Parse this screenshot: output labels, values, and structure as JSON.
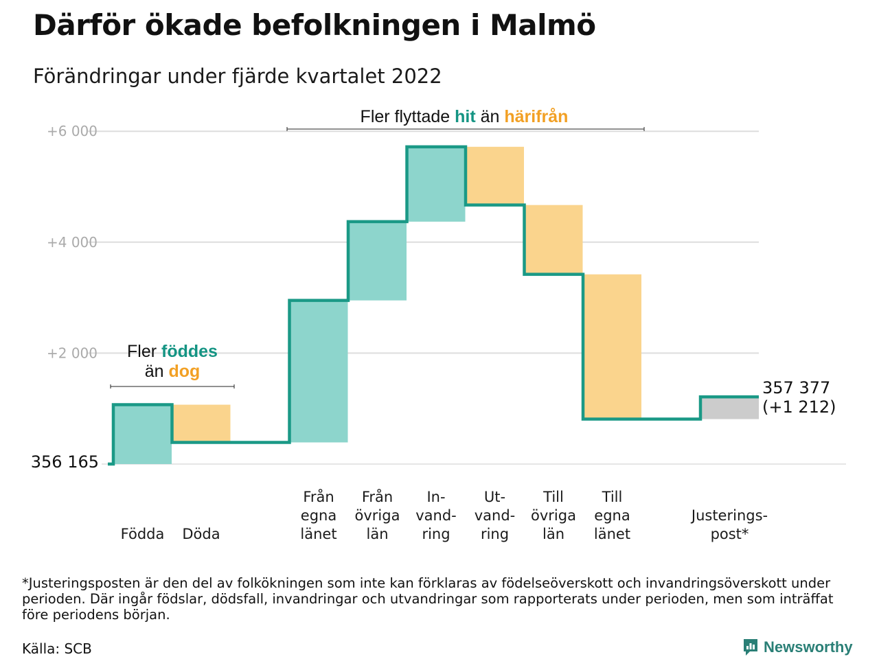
{
  "title": "Därför ökade befolkningen i Malmö",
  "subtitle": "Förändringar under fjärde kvartalet 2022",
  "colors": {
    "increase": "#8dd5cc",
    "decrease": "#fad48d",
    "adjustment": "#cccccc",
    "line": "#1a9986",
    "accent_teal": "#149483",
    "accent_orange": "#f2a024",
    "grid": "#dddddd"
  },
  "chart_data": {
    "type": "waterfall",
    "baseline_label": "356 165",
    "end_label_line1": "357 377",
    "end_label_line2": "(+1 212)",
    "ylim": [
      0,
      6000
    ],
    "yticks": [
      {
        "value": 2000,
        "label": "+2 000"
      },
      {
        "value": 4000,
        "label": "+4 000"
      },
      {
        "value": 6000,
        "label": "+6 000"
      }
    ],
    "bars": [
      {
        "label": [
          "Födda"
        ],
        "from": 0,
        "to": 1070,
        "kind": "increase"
      },
      {
        "label": [
          "Döda"
        ],
        "from": 1070,
        "to": 390,
        "kind": "decrease"
      },
      {
        "label": [
          "Från",
          "egna",
          "länet"
        ],
        "from": 390,
        "to": 2950,
        "kind": "increase"
      },
      {
        "label": [
          "Från",
          "övriga",
          "län"
        ],
        "from": 2950,
        "to": 4370,
        "kind": "increase"
      },
      {
        "label": [
          "In-",
          "vand-",
          "ring"
        ],
        "from": 4370,
        "to": 5720,
        "kind": "increase"
      },
      {
        "label": [
          "Ut-",
          "vand-",
          "ring"
        ],
        "from": 5720,
        "to": 4670,
        "kind": "decrease"
      },
      {
        "label": [
          "Till",
          "övriga",
          "län"
        ],
        "from": 4670,
        "to": 3420,
        "kind": "decrease"
      },
      {
        "label": [
          "Till",
          "egna",
          "länet"
        ],
        "from": 3420,
        "to": 810,
        "kind": "decrease"
      },
      {
        "label": [
          "Justerings-",
          "post*"
        ],
        "from": 810,
        "to": 1212,
        "kind": "adjustment"
      }
    ],
    "annotations": {
      "births": {
        "line1": "Fler ",
        "line1_hl": "föddes",
        "line2": "än ",
        "line2_hl": "dog"
      },
      "migration": {
        "pre": "Fler flyttade ",
        "hit": "hit",
        "mid": " än ",
        "away": "härifrån"
      }
    }
  },
  "footnote": "*Justeringsposten är den del av folkökningen som inte kan förklaras av födelseöverskott och invandringsöverskott under perioden. Där ingår födslar, dödsfall, invandringar och utvandringar som rapporterats under perioden, men som inträffat före periodens början.",
  "source": "Källa: SCB",
  "brand": {
    "name": "Newsworthy",
    "icon": "newsworthy-logo-icon"
  }
}
